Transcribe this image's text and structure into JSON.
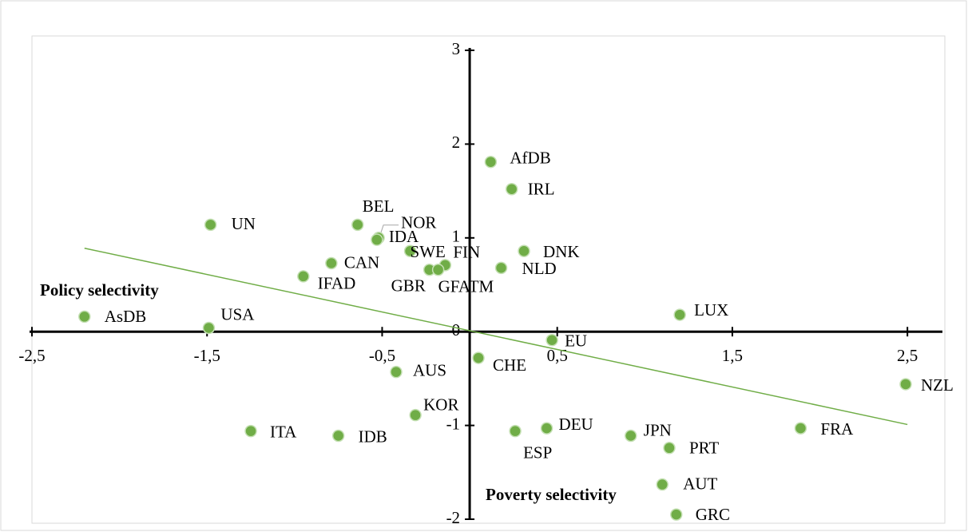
{
  "chart_data": {
    "type": "scatter",
    "labels": [
      "AfDB",
      "IRL",
      "UN",
      "BEL",
      "NOR",
      "IDA",
      "DNK",
      "SWE",
      "FIN",
      "NLD",
      "CAN",
      "GBR",
      "GFATM",
      "IFAD",
      "AsDB",
      "USA",
      "LUX",
      "EU",
      "CHE",
      "AUS",
      "NZL",
      "KOR",
      "ITA",
      "IDB",
      "ESP",
      "DEU",
      "JPN",
      "FRA",
      "PRT",
      "AUT",
      "GRC"
    ],
    "x": [
      0.12,
      0.24,
      -1.48,
      -0.64,
      -0.52,
      -0.53,
      0.31,
      -0.34,
      -0.14,
      0.18,
      -0.79,
      -0.23,
      -0.18,
      -0.95,
      -2.2,
      -1.49,
      1.2,
      0.47,
      0.05,
      -0.42,
      2.49,
      -0.31,
      -1.25,
      -0.75,
      0.26,
      0.44,
      0.92,
      1.89,
      1.14,
      1.1,
      1.18
    ],
    "y": [
      1.81,
      1.52,
      1.14,
      1.14,
      1.0,
      0.98,
      0.86,
      0.86,
      0.71,
      0.68,
      0.73,
      0.66,
      0.66,
      0.59,
      0.16,
      0.04,
      0.18,
      -0.09,
      -0.28,
      -0.43,
      -0.56,
      -0.89,
      -1.06,
      -1.11,
      -1.06,
      -1.03,
      -1.11,
      -1.03,
      -1.24,
      -1.63,
      -1.95
    ],
    "color": "#70ad47",
    "trendline": {
      "x": [
        -2.2,
        2.5
      ],
      "y": [
        0.89,
        -0.99
      ],
      "color": "#70ad47"
    },
    "annotations": [
      "Policy selectivity",
      "Poverty selectivity"
    ],
    "xlim": [
      -2.5,
      2.7
    ],
    "ylim": [
      -2,
      3
    ],
    "xticks": [
      {
        "value": -2.5,
        "label": "-2,5"
      },
      {
        "value": -1.5,
        "label": "-1,5"
      },
      {
        "value": -0.5,
        "label": "-0,5"
      },
      {
        "value": 0.5,
        "label": "0,5"
      },
      {
        "value": 1.5,
        "label": "1,5"
      },
      {
        "value": 2.5,
        "label": "2,5"
      }
    ],
    "yticks": [
      -2,
      -1,
      0,
      1,
      2,
      3
    ]
  }
}
